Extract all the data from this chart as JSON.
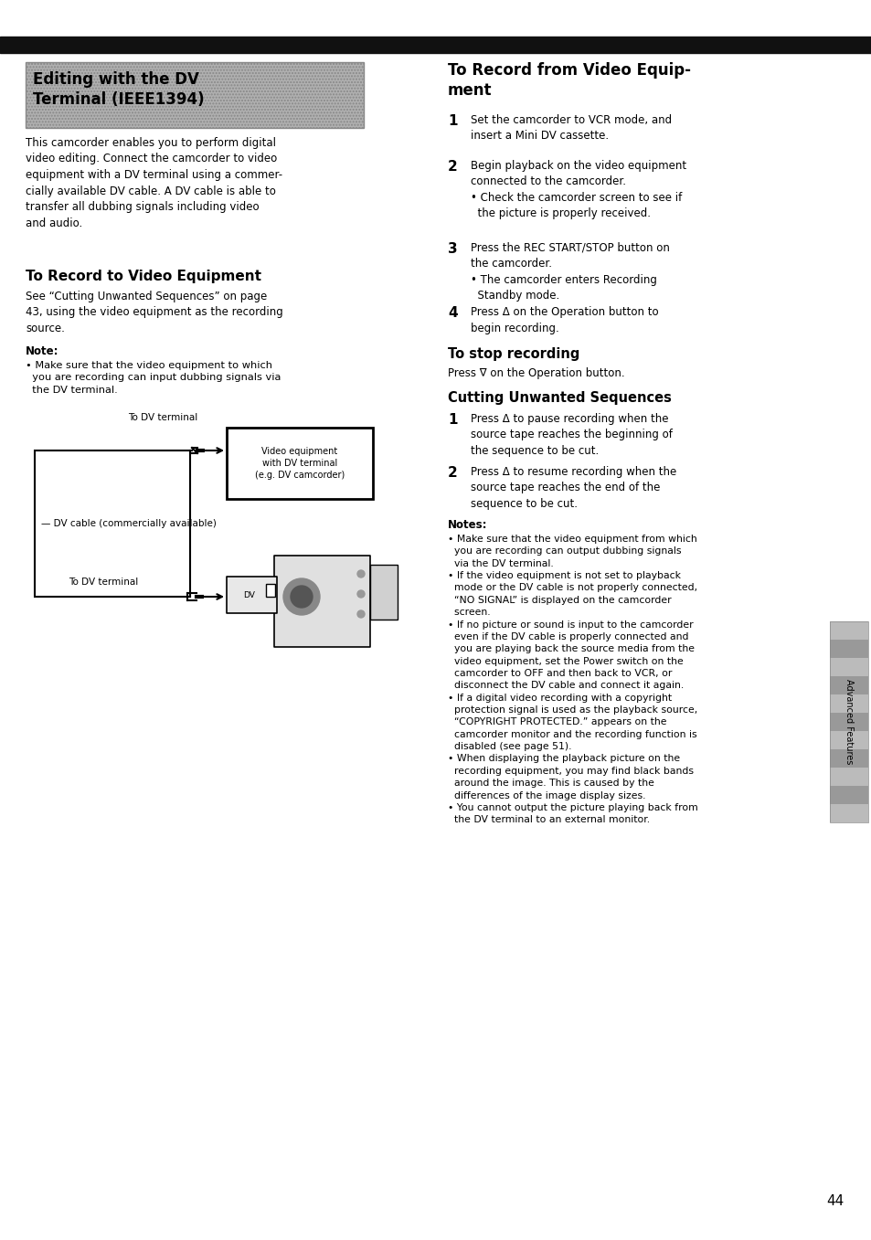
{
  "bg_color": "#ffffff",
  "page_number": "44",
  "top_bar_color": "#000000",
  "title_box_text": "Editing with the DV\nTerminal (IEEE1394)",
  "intro_text": "This camcorder enables you to perform digital\nvideo editing. Connect the camcorder to video\nequipment with a DV terminal using a commer-\ncially available DV cable. A DV cable is able to\ntransfer all dubbing signals including video\nand audio.",
  "section1_title": "To Record to Video Equipment",
  "section1_body": "See “Cutting Unwanted Sequences” on page\n43, using the video equipment as the recording\nsource.",
  "note1_title": "Note:",
  "note1_body": "• Make sure that the video equipment to which\n  you are recording can input dubbing signals via\n  the DV terminal.",
  "section2_title": "To Record from Video Equip-\nment",
  "step2_1": "Set the camcorder to VCR mode, and\ninsert a Mini DV cassette.",
  "step2_2": "Begin playback on the video equipment\nconnected to the camcorder.\n• Check the camcorder screen to see if\n  the picture is properly received.",
  "step2_3": "Press the REC START/STOP button on\nthe camcorder.\n• The camcorder enters Recording\n  Standby mode.",
  "step2_4": "Press Δ on the Operation button to\nbegin recording.",
  "stop_title": "To stop recording",
  "stop_body": "Press ∇ on the Operation button.",
  "cutting_title": "Cutting Unwanted Sequences",
  "cutting_1": "Press Δ to pause recording when the\nsource tape reaches the beginning of\nthe sequence to be cut.",
  "cutting_2": "Press Δ to resume recording when the\nsource tape reaches the end of the\nsequence to be cut.",
  "notes2_title": "Notes:",
  "notes2_body": "• Make sure that the video equipment from which\n  you are recording can output dubbing signals\n  via the DV terminal.\n• If the video equipment is not set to playback\n  mode or the DV cable is not properly connected,\n  “NO SIGNAL” is displayed on the camcorder\n  screen.\n• If no picture or sound is input to the camcorder\n  even if the DV cable is properly connected and\n  you are playing back the source media from the\n  video equipment, set the Power switch on the\n  camcorder to OFF and then back to VCR, or\n  disconnect the DV cable and connect it again.\n• If a digital video recording with a copyright\n  protection signal is used as the playback source,\n  “COPYRIGHT PROTECTED.” appears on the\n  camcorder monitor and the recording function is\n  disabled (see page 51).\n• When displaying the playback picture on the\n  recording equipment, you may find black bands\n  around the image. This is caused by the\n  differences of the image display sizes.\n• You cannot output the picture playing back from\n  the DV terminal to an external monitor."
}
